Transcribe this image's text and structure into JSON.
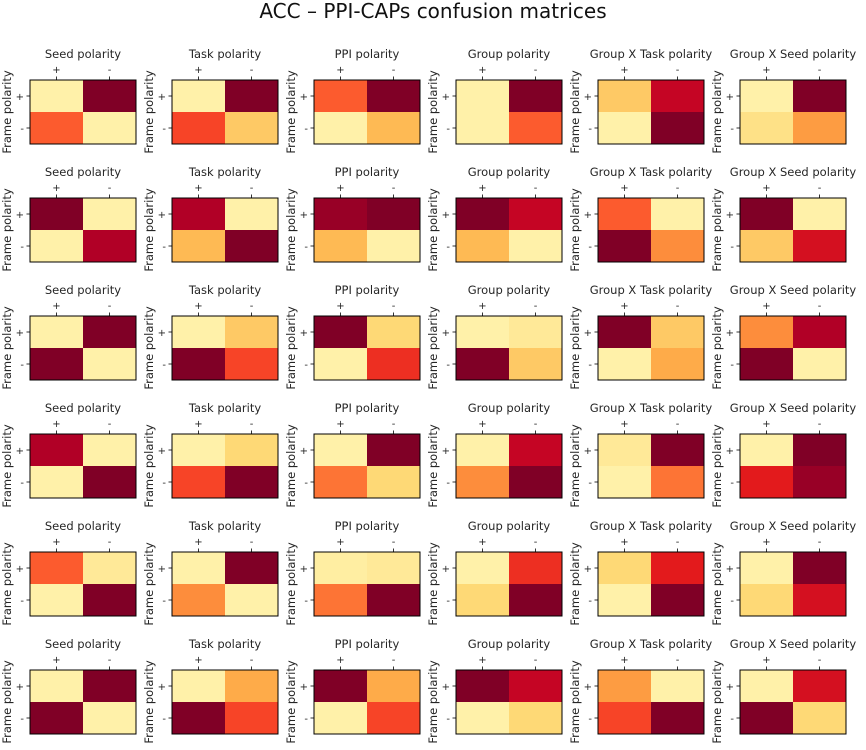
{
  "figure": {
    "title": "ACC – PPI-CAPs confusion matrices"
  },
  "chart_data": {
    "type": "heatmap",
    "title": "ACC – PPI-CAPs confusion matrices",
    "ylabel": "Frame polarity",
    "row_tick_labels": [
      "+",
      "-"
    ],
    "col_tick_labels": [
      "+",
      "-"
    ],
    "column_titles": [
      "Seed polarity",
      "Task polarity",
      "PPI polarity",
      "Group polarity",
      "Group X Task polarity",
      "Group X Seed polarity"
    ],
    "colormap": "YlOrRd",
    "color_range": [
      0,
      1
    ],
    "matrices": [
      [
        [
          [
            0.1,
            1.0
          ],
          [
            0.6,
            0.1
          ]
        ],
        [
          [
            0.1,
            1.0
          ],
          [
            0.65,
            0.3
          ]
        ],
        [
          [
            0.6,
            1.0
          ],
          [
            0.1,
            0.35
          ]
        ],
        [
          [
            0.1,
            1.0
          ],
          [
            0.1,
            0.6
          ]
        ],
        [
          [
            0.3,
            0.85
          ],
          [
            0.1,
            1.0
          ]
        ],
        [
          [
            0.1,
            1.0
          ],
          [
            0.2,
            0.45
          ]
        ]
      ],
      [
        [
          [
            1.0,
            0.1
          ],
          [
            0.1,
            0.9
          ]
        ],
        [
          [
            0.9,
            0.1
          ],
          [
            0.35,
            1.0
          ]
        ],
        [
          [
            0.95,
            1.0
          ],
          [
            0.35,
            0.1
          ]
        ],
        [
          [
            1.0,
            0.85
          ],
          [
            0.35,
            0.1
          ]
        ],
        [
          [
            0.6,
            0.1
          ],
          [
            1.0,
            0.5
          ]
        ],
        [
          [
            1.0,
            0.1
          ],
          [
            0.3,
            0.8
          ]
        ]
      ],
      [
        [
          [
            0.1,
            1.0
          ],
          [
            1.0,
            0.1
          ]
        ],
        [
          [
            0.1,
            0.3
          ],
          [
            1.0,
            0.65
          ]
        ],
        [
          [
            1.0,
            0.25
          ],
          [
            0.1,
            0.7
          ]
        ],
        [
          [
            0.1,
            0.15
          ],
          [
            1.0,
            0.3
          ]
        ],
        [
          [
            1.0,
            0.3
          ],
          [
            0.1,
            0.4
          ]
        ],
        [
          [
            0.5,
            0.9
          ],
          [
            1.0,
            0.1
          ]
        ]
      ],
      [
        [
          [
            0.9,
            0.1
          ],
          [
            0.1,
            1.0
          ]
        ],
        [
          [
            0.1,
            0.25
          ],
          [
            0.65,
            1.0
          ]
        ],
        [
          [
            0.1,
            1.0
          ],
          [
            0.55,
            0.25
          ]
        ],
        [
          [
            0.1,
            0.85
          ],
          [
            0.5,
            1.0
          ]
        ],
        [
          [
            0.15,
            1.0
          ],
          [
            0.1,
            0.55
          ]
        ],
        [
          [
            0.1,
            1.0
          ],
          [
            0.75,
            0.95
          ]
        ]
      ],
      [
        [
          [
            0.6,
            0.15
          ],
          [
            0.1,
            1.0
          ]
        ],
        [
          [
            0.1,
            1.0
          ],
          [
            0.5,
            0.1
          ]
        ],
        [
          [
            0.12,
            0.15
          ],
          [
            0.55,
            1.0
          ]
        ],
        [
          [
            0.1,
            0.7
          ],
          [
            0.25,
            1.0
          ]
        ],
        [
          [
            0.25,
            0.75
          ],
          [
            0.1,
            1.0
          ]
        ],
        [
          [
            0.1,
            1.0
          ],
          [
            0.25,
            0.8
          ]
        ]
      ],
      [
        [
          [
            0.1,
            1.0
          ],
          [
            1.0,
            0.1
          ]
        ],
        [
          [
            0.1,
            0.4
          ],
          [
            1.0,
            0.65
          ]
        ],
        [
          [
            1.0,
            0.4
          ],
          [
            0.1,
            0.65
          ]
        ],
        [
          [
            1.0,
            0.85
          ],
          [
            0.1,
            0.25
          ]
        ],
        [
          [
            0.45,
            0.1
          ],
          [
            0.65,
            1.0
          ]
        ],
        [
          [
            0.1,
            0.8
          ],
          [
            1.0,
            0.25
          ]
        ]
      ]
    ]
  }
}
